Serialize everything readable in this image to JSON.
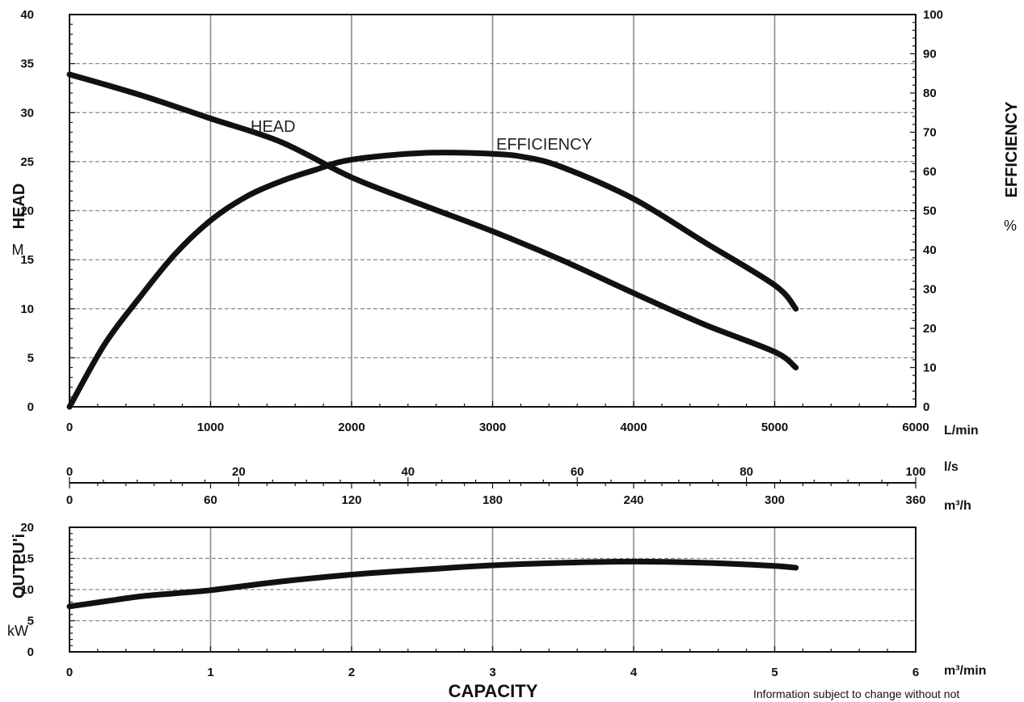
{
  "chart_data": [
    {
      "type": "line",
      "x_axis": {
        "label": "L/min",
        "range": [
          0,
          6000
        ],
        "ticks": [
          "0",
          "1000",
          "2000",
          "3000",
          "4000",
          "5000",
          "6000"
        ]
      },
      "secondary_x_axes": [
        {
          "label": "l/s",
          "range": [
            0,
            100
          ],
          "ticks": [
            "0",
            "20",
            "40",
            "60",
            "80",
            "100"
          ]
        },
        {
          "label": "m³/h",
          "range": [
            0,
            360
          ],
          "ticks": [
            "0",
            "60",
            "120",
            "180",
            "240",
            "300",
            "360"
          ]
        }
      ],
      "y_axis_left": {
        "title": "HEAD",
        "unit": "M",
        "range": [
          0,
          40
        ],
        "ticks": [
          "0",
          "5",
          "10",
          "15",
          "20",
          "25",
          "30",
          "35",
          "40"
        ]
      },
      "y_axis_right": {
        "title": "EFFICIENCY",
        "unit": "%",
        "range": [
          0,
          100
        ],
        "ticks": [
          "0",
          "10",
          "20",
          "30",
          "40",
          "50",
          "60",
          "70",
          "80",
          "90",
          "100"
        ]
      },
      "grid": true,
      "series": [
        {
          "name": "HEAD",
          "axis": "left",
          "x": [
            0,
            500,
            1000,
            1500,
            2000,
            2500,
            3000,
            3500,
            4000,
            4500,
            5000,
            5150
          ],
          "y": [
            33.9,
            31.8,
            29.4,
            27,
            23.4,
            20.6,
            17.9,
            14.9,
            11.6,
            8.4,
            5.6,
            4.0
          ]
        },
        {
          "name": "EFFICIENCY",
          "axis": "right",
          "x": [
            0,
            250,
            500,
            750,
            1000,
            1250,
            1500,
            1750,
            2000,
            2500,
            3000,
            3250,
            3500,
            4000,
            4500,
            5000,
            5150
          ],
          "y": [
            0,
            16,
            28,
            39,
            47.5,
            53.5,
            57.5,
            60.5,
            63,
            64.7,
            64.5,
            63.5,
            61,
            53,
            42,
            31,
            25
          ]
        }
      ]
    },
    {
      "type": "line",
      "x_axis": {
        "label": "m³/min",
        "range": [
          0,
          6
        ],
        "ticks": [
          "0",
          "1",
          "2",
          "3",
          "4",
          "5",
          "6"
        ]
      },
      "y_axis_left": {
        "title": "OUTPU'i",
        "unit": "kW",
        "range": [
          0,
          20
        ],
        "ticks": [
          "0",
          "5",
          "10",
          "15",
          "20"
        ]
      },
      "grid": true,
      "series": [
        {
          "name": "OUTPUT",
          "x": [
            0,
            0.25,
            0.5,
            0.75,
            1,
            1.5,
            2,
            2.5,
            3,
            3.5,
            4,
            4.5,
            5,
            5.15
          ],
          "y": [
            7.3,
            8.1,
            8.9,
            9.4,
            9.9,
            11.3,
            12.4,
            13.2,
            13.9,
            14.3,
            14.5,
            14.3,
            13.8,
            13.5
          ]
        }
      ]
    }
  ],
  "labels": {
    "head_curve": "HEAD",
    "efficiency_curve": "EFFICIENCY",
    "capacity": "CAPACITY",
    "note": "Information subject to change without not"
  }
}
